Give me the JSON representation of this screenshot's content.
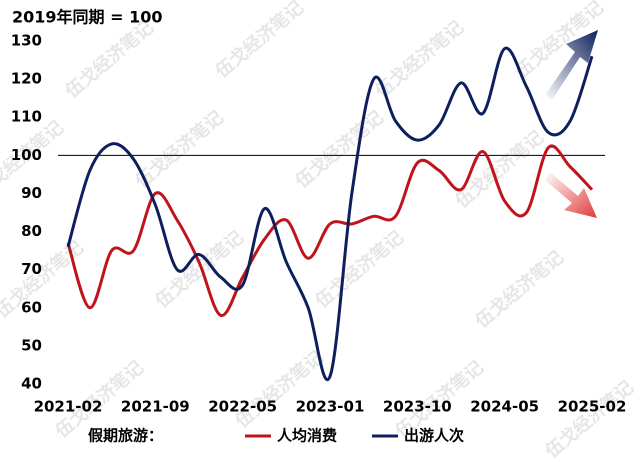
{
  "chart_data": {
    "type": "line",
    "y_axis_title": "2019年同期 = 100",
    "legend_title": "假期旅游：",
    "watermark": "伍戈经济笔记",
    "categories": [
      "2021-02",
      null,
      null,
      null,
      "2021-09",
      null,
      null,
      null,
      "2022-05",
      null,
      null,
      null,
      "2023-01",
      null,
      null,
      null,
      "2023-10",
      null,
      null,
      null,
      "2024-05",
      null,
      null,
      null,
      "2025-02"
    ],
    "series": [
      {
        "name": "人均消费",
        "color": "#c0141c",
        "values": [
          77,
          60,
          75,
          75,
          90,
          83,
          72,
          58,
          68,
          78,
          83,
          73,
          82,
          82,
          84,
          84,
          98,
          96,
          91,
          101,
          88,
          85,
          102,
          97,
          91
        ]
      },
      {
        "name": "出游人次",
        "color": "#0d1f5c",
        "values": [
          76,
          96,
          103,
          99,
          87,
          70,
          74,
          68,
          66,
          86,
          72,
          60,
          42,
          90,
          120,
          109,
          104,
          108,
          119,
          111,
          128,
          118,
          106,
          109,
          126
        ]
      }
    ],
    "ylim": [
      40,
      130
    ],
    "yticks": [
      40,
      50,
      60,
      70,
      80,
      90,
      100,
      110,
      120,
      130
    ],
    "reference_line": 100,
    "grid": false,
    "legend": "bottom"
  }
}
